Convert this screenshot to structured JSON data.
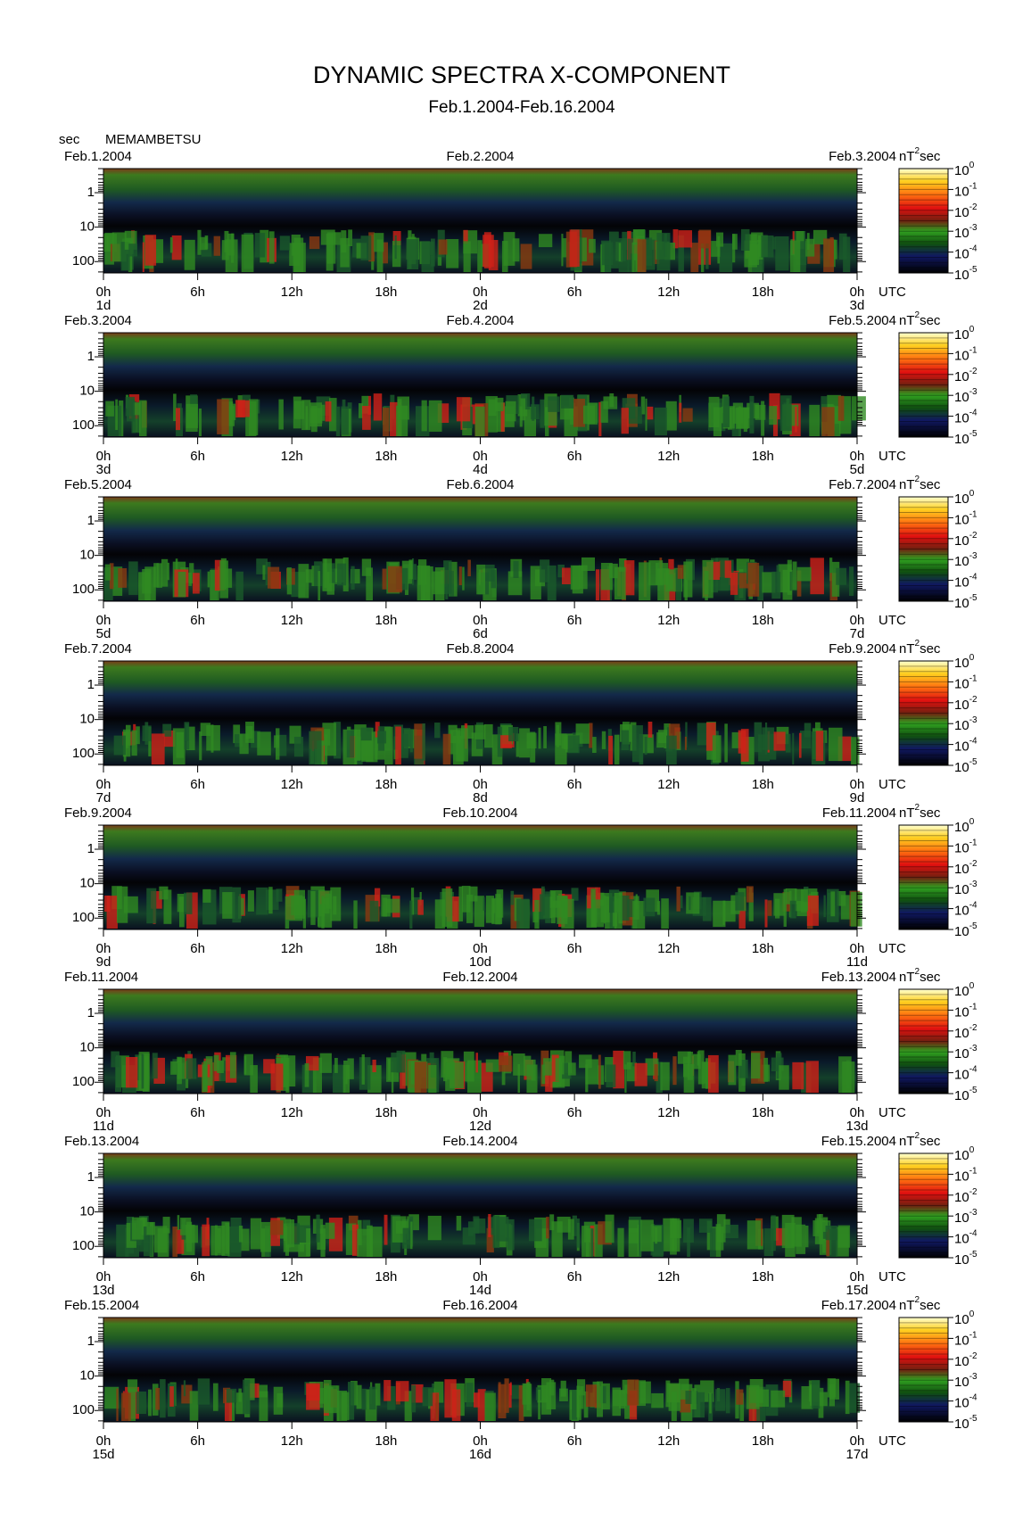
{
  "title": "DYNAMIC SPECTRA X-COMPONENT",
  "subtitle": "Feb.1.2004-Feb.16.2004",
  "y_unit": "sec",
  "station": "MEMAMBETSU",
  "yticks": [
    "1",
    "10",
    "100"
  ],
  "xticks": [
    "0h",
    "6h",
    "12h",
    "18h",
    "0h",
    "6h",
    "12h",
    "18h",
    "0h"
  ],
  "x_unit": "UTC",
  "colorbar": {
    "unit": [
      "nT",
      "2",
      "sec"
    ],
    "base": "10",
    "exponents": [
      "0",
      "-1",
      "-2",
      "-3",
      "-4",
      "-5"
    ]
  },
  "panels": [
    {
      "dates": [
        "Feb.1.2004",
        "Feb.2.2004",
        "Feb.3.2004"
      ],
      "days": [
        "1d",
        "2d",
        "3d"
      ]
    },
    {
      "dates": [
        "Feb.3.2004",
        "Feb.4.2004",
        "Feb.5.2004"
      ],
      "days": [
        "3d",
        "4d",
        "5d"
      ]
    },
    {
      "dates": [
        "Feb.5.2004",
        "Feb.6.2004",
        "Feb.7.2004"
      ],
      "days": [
        "5d",
        "6d",
        "7d"
      ]
    },
    {
      "dates": [
        "Feb.7.2004",
        "Feb.8.2004",
        "Feb.9.2004"
      ],
      "days": [
        "7d",
        "8d",
        "9d"
      ]
    },
    {
      "dates": [
        "Feb.9.2004",
        "Feb.10.2004",
        "Feb.11.2004"
      ],
      "days": [
        "9d",
        "10d",
        "11d"
      ]
    },
    {
      "dates": [
        "Feb.11.2004",
        "Feb.12.2004",
        "Feb.13.2004"
      ],
      "days": [
        "11d",
        "12d",
        "13d"
      ]
    },
    {
      "dates": [
        "Feb.13.2004",
        "Feb.14.2004",
        "Feb.15.2004"
      ],
      "days": [
        "13d",
        "14d",
        "15d"
      ]
    },
    {
      "dates": [
        "Feb.15.2004",
        "Feb.16.2004",
        "Feb.17.2004"
      ],
      "days": [
        "15d",
        "16d",
        "17d"
      ]
    }
  ]
}
